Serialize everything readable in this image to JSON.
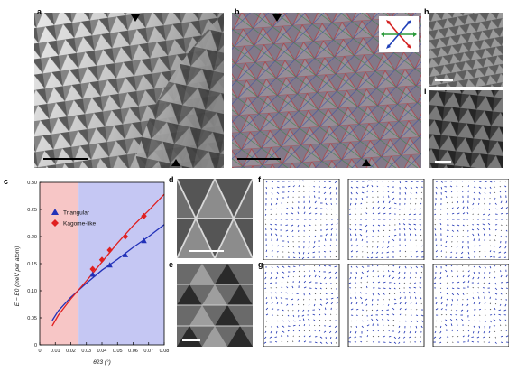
{
  "panels": {
    "a": "a",
    "b": "b",
    "c": "c",
    "d": "d",
    "e": "e",
    "f": "f",
    "g": "g",
    "h": "h",
    "i": "i"
  },
  "chart_data": {
    "type": "line",
    "xlabel": "θ23 (°)",
    "ylabel": "E − E0 (meV per atom)",
    "xlim": [
      0,
      0.08
    ],
    "ylim": [
      0,
      0.3
    ],
    "xticks": [
      "0",
      "0.01",
      "0.02",
      "0.03",
      "0.04",
      "0.05",
      "0.06",
      "0.07",
      "0.08"
    ],
    "yticks": [
      "0",
      "0.05",
      "0.10",
      "0.15",
      "0.20",
      "0.25",
      "0.30"
    ],
    "shaded_regions": [
      {
        "from": 0,
        "to": 0.025,
        "color": "#f7c6c6"
      },
      {
        "from": 0.025,
        "to": 0.08,
        "color": "#c5c7f3"
      }
    ],
    "series": [
      {
        "name": "Triangular",
        "color": "#2231b8",
        "marker": "triangle",
        "points": [
          [
            0.034,
            0.13
          ],
          [
            0.045,
            0.147
          ],
          [
            0.055,
            0.166
          ],
          [
            0.067,
            0.192
          ]
        ],
        "fit": [
          [
            0.008,
            0.045
          ],
          [
            0.012,
            0.063
          ],
          [
            0.02,
            0.088
          ],
          [
            0.03,
            0.114
          ],
          [
            0.04,
            0.138
          ],
          [
            0.05,
            0.158
          ],
          [
            0.06,
            0.18
          ],
          [
            0.07,
            0.2
          ],
          [
            0.08,
            0.222
          ]
        ]
      },
      {
        "name": "Kagome-like",
        "color": "#e02020",
        "marker": "diamond",
        "points": [
          [
            0.034,
            0.14
          ],
          [
            0.04,
            0.157
          ],
          [
            0.045,
            0.175
          ],
          [
            0.055,
            0.2
          ],
          [
            0.067,
            0.238
          ]
        ],
        "fit": [
          [
            0.008,
            0.035
          ],
          [
            0.012,
            0.055
          ],
          [
            0.02,
            0.085
          ],
          [
            0.03,
            0.118
          ],
          [
            0.04,
            0.153
          ],
          [
            0.05,
            0.188
          ],
          [
            0.06,
            0.22
          ],
          [
            0.07,
            0.248
          ],
          [
            0.08,
            0.278
          ]
        ]
      }
    ]
  }
}
